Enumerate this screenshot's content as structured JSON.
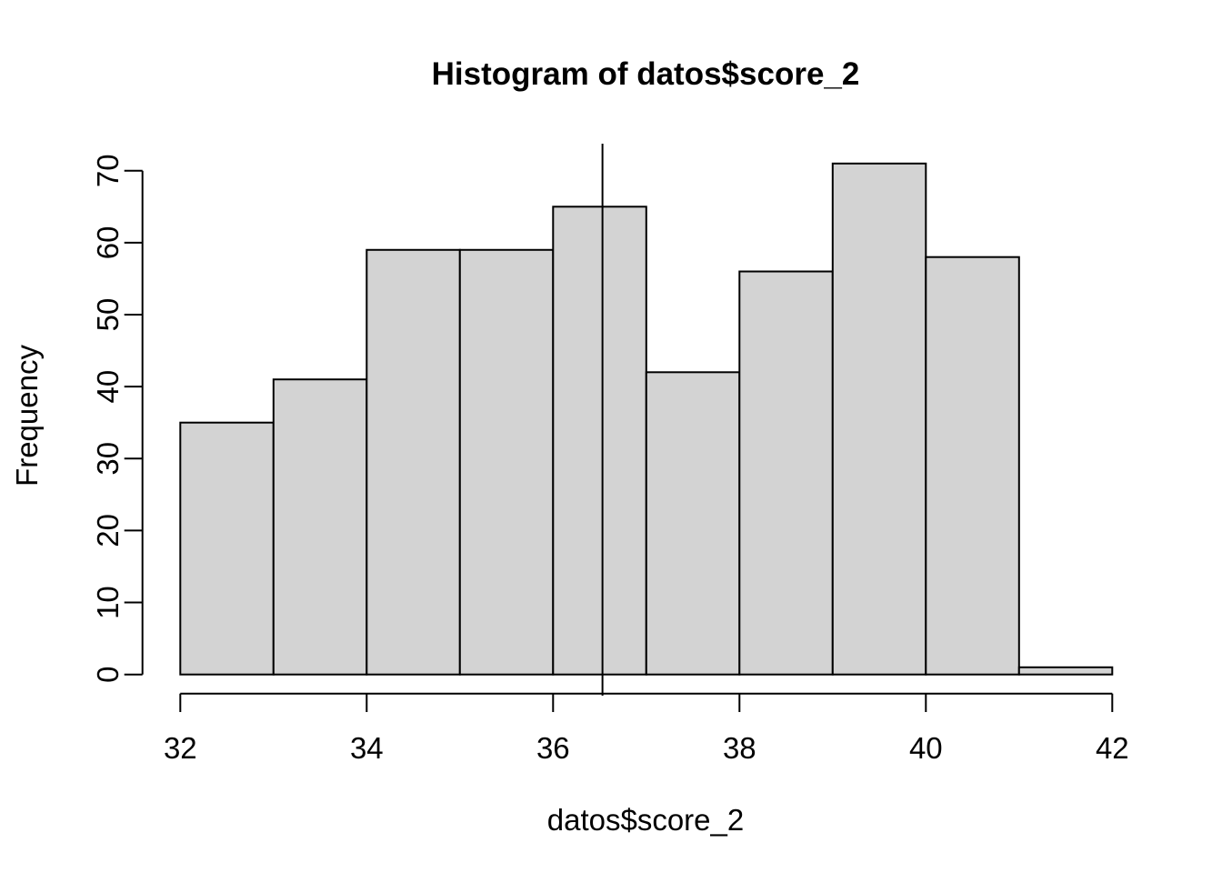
{
  "page": {
    "background": "#FFFFFF"
  },
  "chart_data": {
    "type": "bar",
    "variant": "histogram",
    "title": "Histogram of datos$score_2",
    "xlabel": "datos$score_2",
    "ylabel": "Frequency",
    "bin_edges": [
      32,
      33,
      34,
      35,
      36,
      37,
      38,
      39,
      40,
      41,
      42
    ],
    "counts": [
      35,
      41,
      59,
      59,
      65,
      42,
      56,
      71,
      58,
      1
    ],
    "x_ticks": [
      32,
      34,
      36,
      38,
      40,
      42
    ],
    "y_ticks": [
      0,
      10,
      20,
      30,
      40,
      50,
      60,
      70
    ],
    "xlim": [
      32,
      42
    ],
    "ylim": [
      0,
      70
    ],
    "vline_x": 36.53,
    "bar_fill": "#D3D3D3",
    "bar_stroke": "#000000",
    "axis_color": "#000000",
    "vline_color": "#000000",
    "grid": false,
    "legend": "none"
  }
}
